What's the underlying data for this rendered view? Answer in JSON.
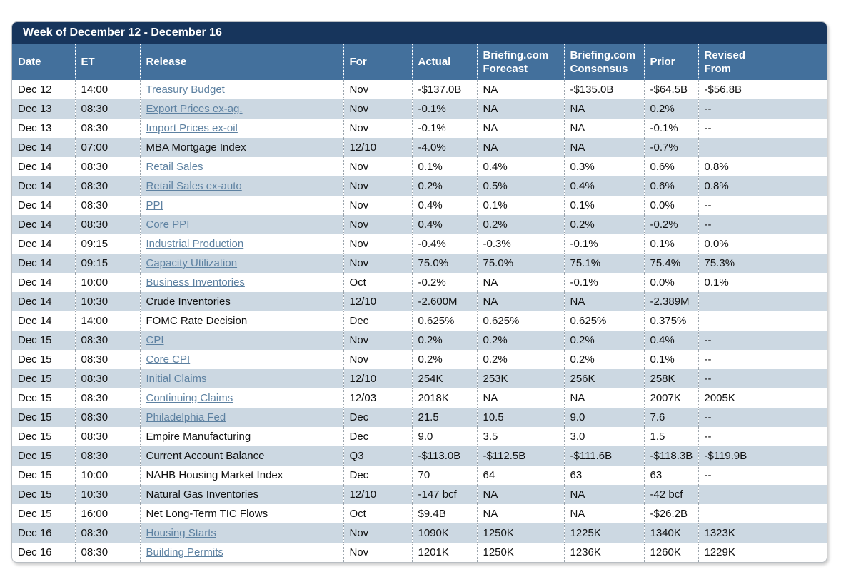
{
  "title": "Week of December 12 - December 16",
  "colors": {
    "title_bar_bg": "#17355c",
    "header_bg": "#43709c",
    "row_alt_bg": "#ccd8e2",
    "link": "#5d81a1",
    "text": "#111111"
  },
  "columns": [
    {
      "key": "date",
      "label": "Date"
    },
    {
      "key": "et",
      "label": "ET"
    },
    {
      "key": "release",
      "label": "Release"
    },
    {
      "key": "for",
      "label": "For"
    },
    {
      "key": "actual",
      "label": "Actual"
    },
    {
      "key": "forecast",
      "label": "Briefing.com",
      "label2": "Forecast"
    },
    {
      "key": "consensus",
      "label": "Briefing.com",
      "label2": "Consensus"
    },
    {
      "key": "prior",
      "label": "Prior"
    },
    {
      "key": "revised",
      "label": "Revised",
      "label2": "From"
    }
  ],
  "rows": [
    {
      "date": "Dec 12",
      "et": "14:00",
      "release": "Treasury Budget",
      "link": true,
      "for": "Nov",
      "actual": "-$137.0B",
      "forecast": "NA",
      "consensus": "-$135.0B",
      "prior": "-$64.5B",
      "revised": "-$56.8B"
    },
    {
      "date": "Dec 13",
      "et": "08:30",
      "release": "Export Prices ex-ag.",
      "link": true,
      "for": "Nov",
      "actual": "-0.1%",
      "forecast": "NA",
      "consensus": "NA",
      "prior": "0.2%",
      "revised": "--"
    },
    {
      "date": "Dec 13",
      "et": "08:30",
      "release": "Import Prices ex-oil",
      "link": true,
      "for": "Nov",
      "actual": "-0.1%",
      "forecast": "NA",
      "consensus": "NA",
      "prior": "-0.1%",
      "revised": "--"
    },
    {
      "date": "Dec 14",
      "et": "07:00",
      "release": "MBA Mortgage Index",
      "link": false,
      "for": "12/10",
      "actual": "-4.0%",
      "forecast": "NA",
      "consensus": "NA",
      "prior": "-0.7%",
      "revised": ""
    },
    {
      "date": "Dec 14",
      "et": "08:30",
      "release": "Retail Sales",
      "link": true,
      "for": "Nov",
      "actual": "0.1%",
      "forecast": "0.4%",
      "consensus": "0.3%",
      "prior": "0.6%",
      "revised": "0.8%"
    },
    {
      "date": "Dec 14",
      "et": "08:30",
      "release": "Retail Sales ex-auto",
      "link": true,
      "for": "Nov",
      "actual": "0.2%",
      "forecast": "0.5%",
      "consensus": "0.4%",
      "prior": "0.6%",
      "revised": "0.8%"
    },
    {
      "date": "Dec 14",
      "et": "08:30",
      "release": "PPI",
      "link": true,
      "for": "Nov",
      "actual": "0.4%",
      "forecast": "0.1%",
      "consensus": "0.1%",
      "prior": "0.0%",
      "revised": "--"
    },
    {
      "date": "Dec 14",
      "et": "08:30",
      "release": "Core PPI",
      "link": true,
      "for": "Nov",
      "actual": "0.4%",
      "forecast": "0.2%",
      "consensus": "0.2%",
      "prior": "-0.2%",
      "revised": "--"
    },
    {
      "date": "Dec 14",
      "et": "09:15",
      "release": "Industrial Production",
      "link": true,
      "for": "Nov",
      "actual": "-0.4%",
      "forecast": "-0.3%",
      "consensus": "-0.1%",
      "prior": "0.1%",
      "revised": "0.0%"
    },
    {
      "date": "Dec 14",
      "et": "09:15",
      "release": "Capacity Utilization",
      "link": true,
      "for": "Nov",
      "actual": "75.0%",
      "forecast": "75.0%",
      "consensus": "75.1%",
      "prior": "75.4%",
      "revised": "75.3%"
    },
    {
      "date": "Dec 14",
      "et": "10:00",
      "release": "Business Inventories",
      "link": true,
      "for": "Oct",
      "actual": "-0.2%",
      "forecast": "NA",
      "consensus": "-0.1%",
      "prior": "0.0%",
      "revised": "0.1%"
    },
    {
      "date": "Dec 14",
      "et": "10:30",
      "release": "Crude Inventories",
      "link": false,
      "for": "12/10",
      "actual": "-2.600M",
      "forecast": "NA",
      "consensus": "NA",
      "prior": "-2.389M",
      "revised": ""
    },
    {
      "date": "Dec 14",
      "et": "14:00",
      "release": "FOMC Rate Decision",
      "link": false,
      "for": "Dec",
      "actual": "0.625%",
      "forecast": "0.625%",
      "consensus": "0.625%",
      "prior": "0.375%",
      "revised": ""
    },
    {
      "date": "Dec 15",
      "et": "08:30",
      "release": "CPI",
      "link": true,
      "for": "Nov",
      "actual": "0.2%",
      "forecast": "0.2%",
      "consensus": "0.2%",
      "prior": "0.4%",
      "revised": "--"
    },
    {
      "date": "Dec 15",
      "et": "08:30",
      "release": "Core CPI",
      "link": true,
      "for": "Nov",
      "actual": "0.2%",
      "forecast": "0.2%",
      "consensus": "0.2%",
      "prior": "0.1%",
      "revised": "--"
    },
    {
      "date": "Dec 15",
      "et": "08:30",
      "release": "Initial Claims",
      "link": true,
      "for": "12/10",
      "actual": "254K",
      "forecast": "253K",
      "consensus": "256K",
      "prior": "258K",
      "revised": "--"
    },
    {
      "date": "Dec 15",
      "et": "08:30",
      "release": "Continuing Claims",
      "link": true,
      "for": "12/03",
      "actual": "2018K",
      "forecast": "NA",
      "consensus": "NA",
      "prior": "2007K",
      "revised": "2005K"
    },
    {
      "date": "Dec 15",
      "et": "08:30",
      "release": "Philadelphia Fed",
      "link": true,
      "for": "Dec",
      "actual": "21.5",
      "forecast": "10.5",
      "consensus": "9.0",
      "prior": "7.6",
      "revised": "--"
    },
    {
      "date": "Dec 15",
      "et": "08:30",
      "release": "Empire Manufacturing",
      "link": false,
      "for": "Dec",
      "actual": "9.0",
      "forecast": "3.5",
      "consensus": "3.0",
      "prior": "1.5",
      "revised": "--"
    },
    {
      "date": "Dec 15",
      "et": "08:30",
      "release": "Current Account Balance",
      "link": false,
      "for": "Q3",
      "actual": "-$113.0B",
      "forecast": "-$112.5B",
      "consensus": "-$111.6B",
      "prior": "-$118.3B",
      "revised": "-$119.9B"
    },
    {
      "date": "Dec 15",
      "et": "10:00",
      "release": "NAHB Housing Market Index",
      "link": false,
      "for": "Dec",
      "actual": "70",
      "forecast": "64",
      "consensus": "63",
      "prior": "63",
      "revised": "--"
    },
    {
      "date": "Dec 15",
      "et": "10:30",
      "release": "Natural Gas Inventories",
      "link": false,
      "for": "12/10",
      "actual": "-147 bcf",
      "forecast": "NA",
      "consensus": "NA",
      "prior": "-42 bcf",
      "revised": ""
    },
    {
      "date": "Dec 15",
      "et": "16:00",
      "release": "Net Long-Term TIC Flows",
      "link": false,
      "for": "Oct",
      "actual": "$9.4B",
      "forecast": "NA",
      "consensus": "NA",
      "prior": "-$26.2B",
      "revised": ""
    },
    {
      "date": "Dec 16",
      "et": "08:30",
      "release": "Housing Starts",
      "link": true,
      "for": "Nov",
      "actual": "1090K",
      "forecast": "1250K",
      "consensus": "1225K",
      "prior": "1340K",
      "revised": "1323K"
    },
    {
      "date": "Dec 16",
      "et": "08:30",
      "release": "Building Permits",
      "link": true,
      "for": "Nov",
      "actual": "1201K",
      "forecast": "1250K",
      "consensus": "1236K",
      "prior": "1260K",
      "revised": "1229K"
    }
  ]
}
